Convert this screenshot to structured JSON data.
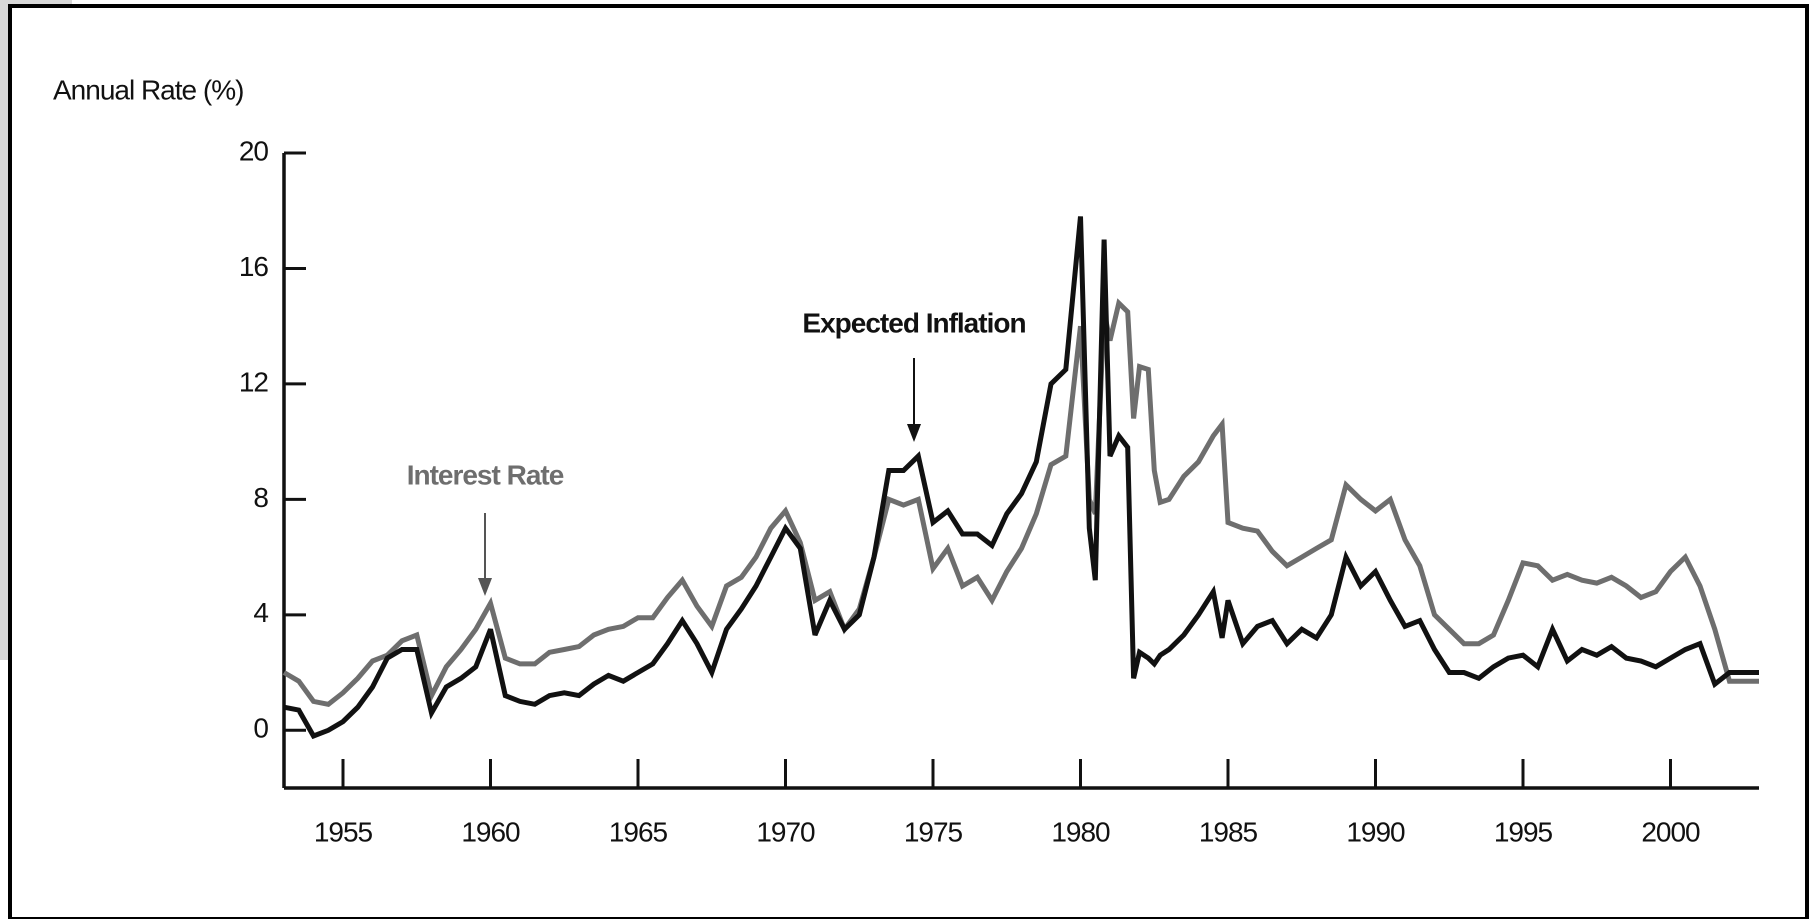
{
  "chart_data": {
    "type": "line",
    "y_label": "Annual Rate (%)",
    "annotations": [
      "Interest Rate",
      "Expected Inflation"
    ],
    "x": [
      1953,
      1953.5,
      1954,
      1954.5,
      1955,
      1955.5,
      1956,
      1956.5,
      1957,
      1957.5,
      1958,
      1958.5,
      1959,
      1959.5,
      1960,
      1960.5,
      1961,
      1961.5,
      1962,
      1962.5,
      1963,
      1963.5,
      1964,
      1964.5,
      1965,
      1965.5,
      1966,
      1966.5,
      1967,
      1967.5,
      1968,
      1968.5,
      1969,
      1969.5,
      1970,
      1970.5,
      1971,
      1971.5,
      1972,
      1972.5,
      1973,
      1973.5,
      1974,
      1974.5,
      1975,
      1975.5,
      1976,
      1976.5,
      1977,
      1977.5,
      1978,
      1978.5,
      1979,
      1979.5,
      1980,
      1980.3,
      1980.5,
      1980.8,
      1981,
      1981.3,
      1981.6,
      1981.8,
      1982,
      1982.3,
      1982.5,
      1982.7,
      1983,
      1983.5,
      1984,
      1984.5,
      1984.8,
      1985,
      1985.5,
      1986,
      1986.5,
      1987,
      1987.5,
      1988,
      1988.5,
      1989,
      1989.5,
      1990,
      1990.5,
      1991,
      1991.5,
      1992,
      1992.5,
      1993,
      1993.5,
      1994,
      1994.5,
      1995,
      1995.5,
      1996,
      1996.5,
      1997,
      1997.5,
      1998,
      1998.5,
      1999,
      1999.5,
      2000,
      2000.5,
      2001,
      2001.5,
      2002,
      2002.5,
      2003
    ],
    "series": [
      {
        "name": "Interest Rate",
        "color": "#6e6e6e",
        "values": [
          2.0,
          1.7,
          1.0,
          0.9,
          1.3,
          1.8,
          2.4,
          2.6,
          3.1,
          3.3,
          1.2,
          2.2,
          2.8,
          3.5,
          4.4,
          2.5,
          2.3,
          2.3,
          2.7,
          2.8,
          2.9,
          3.3,
          3.5,
          3.6,
          3.9,
          3.9,
          4.6,
          5.2,
          4.3,
          3.6,
          5.0,
          5.3,
          6.0,
          7.0,
          7.6,
          6.5,
          4.5,
          4.8,
          3.5,
          4.2,
          6.0,
          8.0,
          7.8,
          8.0,
          5.6,
          6.3,
          5.0,
          5.3,
          4.5,
          5.5,
          6.3,
          7.5,
          9.2,
          9.5,
          14.0,
          8.0,
          7.5,
          14.5,
          13.5,
          14.8,
          14.5,
          10.8,
          12.6,
          12.5,
          9.0,
          7.9,
          8.0,
          8.8,
          9.3,
          10.2,
          10.6,
          7.2,
          7.0,
          6.9,
          6.2,
          5.7,
          6.0,
          6.3,
          6.6,
          8.5,
          8.0,
          7.6,
          8.0,
          6.6,
          5.7,
          4.0,
          3.5,
          3.0,
          3.0,
          3.3,
          4.5,
          5.8,
          5.7,
          5.2,
          5.4,
          5.2,
          5.1,
          5.3,
          5.0,
          4.6,
          4.8,
          5.5,
          6.0,
          5.0,
          3.5,
          1.7,
          1.7,
          1.7
        ]
      },
      {
        "name": "Expected Inflation",
        "color": "#111111",
        "values": [
          0.8,
          0.7,
          -0.2,
          0.0,
          0.3,
          0.8,
          1.5,
          2.5,
          2.8,
          2.8,
          0.6,
          1.5,
          1.8,
          2.2,
          3.5,
          1.2,
          1.0,
          0.9,
          1.2,
          1.3,
          1.2,
          1.6,
          1.9,
          1.7,
          2.0,
          2.3,
          3.0,
          3.8,
          3.0,
          2.0,
          3.5,
          4.2,
          5.0,
          6.0,
          7.0,
          6.3,
          3.3,
          4.5,
          3.5,
          4.0,
          6.0,
          9.0,
          9.0,
          9.5,
          7.2,
          7.6,
          6.8,
          6.8,
          6.4,
          7.5,
          8.2,
          9.3,
          12.0,
          12.5,
          17.8,
          7.0,
          5.2,
          17.0,
          9.5,
          10.2,
          9.8,
          1.8,
          2.7,
          2.5,
          2.3,
          2.6,
          2.8,
          3.3,
          4.0,
          4.8,
          3.2,
          4.5,
          3.0,
          3.6,
          3.8,
          3.0,
          3.5,
          3.2,
          4.0,
          6.0,
          5.0,
          5.5,
          4.5,
          3.6,
          3.8,
          2.8,
          2.0,
          2.0,
          1.8,
          2.2,
          2.5,
          2.6,
          2.2,
          3.5,
          2.4,
          2.8,
          2.6,
          2.9,
          2.5,
          2.4,
          2.2,
          2.5,
          2.8,
          3.0,
          1.6,
          2.0,
          2.0,
          2.0
        ]
      }
    ],
    "xlim": [
      1953,
      2003
    ],
    "xticks": [
      1955,
      1960,
      1965,
      1970,
      1975,
      1980,
      1985,
      1990,
      1995,
      2000
    ],
    "ylim": [
      -2,
      20
    ],
    "yticks": [
      0,
      4,
      8,
      12,
      16,
      20
    ],
    "grid": false,
    "legend": false
  }
}
